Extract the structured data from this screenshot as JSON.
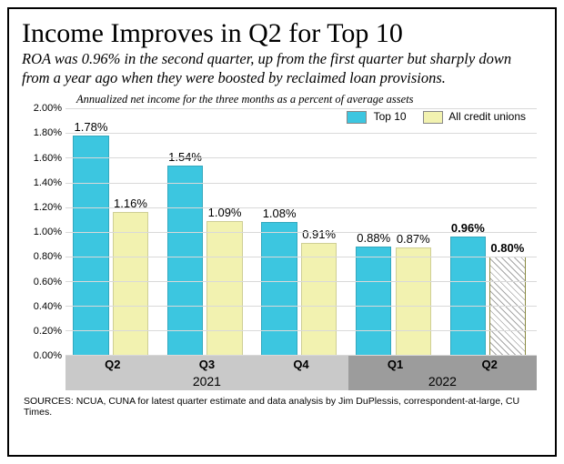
{
  "title": "Income Improves in Q2 for Top 10",
  "subtitle": "ROA was 0.96% in the second quarter, up from the first quarter  but sharply down from a year ago when they were boosted by reclaimed loan provisions.",
  "source": "SOURCES: NCUA, CUNA for latest quarter estimate and data analysis by Jim DuPlessis, correspondent-at-large, CU Times.",
  "chart": {
    "type": "grouped-bar",
    "caption": "Annualized net income for the three months as a percent of average assets",
    "ylim": [
      0.0,
      2.0
    ],
    "ytick_step": 0.2,
    "y_tick_format": "percent_2dec",
    "grid_color": "#d9d9d9",
    "background_color": "#ffffff",
    "value_label_fontsize": 13,
    "axis_label_fontsize": 11,
    "bar_group_gap_pct": 8,
    "categories": [
      "Q2",
      "Q3",
      "Q4",
      "Q1",
      "Q2"
    ],
    "year_bands": [
      {
        "label": "2021",
        "span": 3,
        "bg": "#c9c9c9"
      },
      {
        "label": "2022",
        "span": 2,
        "bg": "#9c9c9c"
      }
    ],
    "series": [
      {
        "name": "Top 10",
        "color": "#3cc6e0",
        "values": [
          1.78,
          1.54,
          1.08,
          0.88,
          0.96
        ],
        "hatched": [
          false,
          false,
          false,
          false,
          false
        ],
        "bold_last": true
      },
      {
        "name": "All credit unions",
        "color": "#f2f2b0",
        "values": [
          1.16,
          1.09,
          0.91,
          0.87,
          0.8
        ],
        "hatched": [
          false,
          false,
          false,
          false,
          true
        ],
        "bold_last": true
      }
    ]
  }
}
